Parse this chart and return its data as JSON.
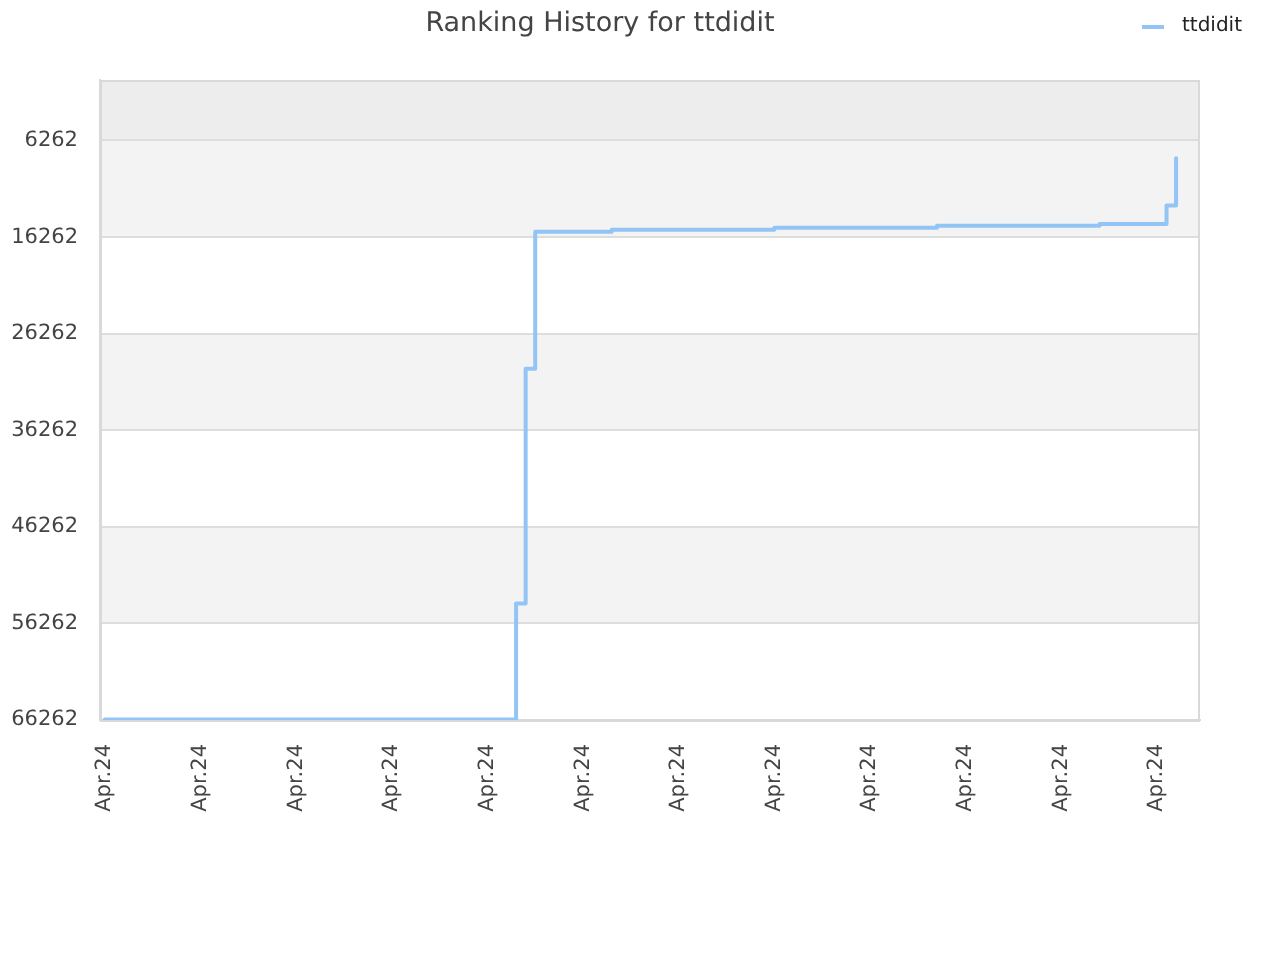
{
  "chart_data": {
    "type": "step",
    "title": "Ranking History for ttdidit",
    "categories": [
      "Apr.24",
      null,
      null,
      null,
      null,
      null,
      null,
      null,
      null,
      null,
      "Apr.24",
      null,
      null,
      null,
      null,
      null,
      null,
      null,
      null,
      null,
      "Apr.24",
      null,
      null,
      null,
      null,
      null,
      null,
      null,
      null,
      null,
      "Apr.24",
      null,
      null,
      null,
      null,
      null,
      null,
      null,
      null,
      null,
      "Apr.24",
      null,
      null,
      null,
      null,
      null,
      null,
      null,
      null,
      null,
      "Apr.24",
      null,
      null,
      null,
      null,
      null,
      null,
      null,
      null,
      null,
      "Apr.24",
      null,
      null,
      null,
      null,
      null,
      null,
      null,
      null,
      null,
      "Apr.24",
      null,
      null,
      null,
      null,
      null,
      null,
      null,
      null,
      null,
      "Apr.24",
      null,
      null,
      null,
      null,
      null,
      null,
      null,
      null,
      null,
      "Apr.24",
      null,
      null,
      null,
      null,
      null,
      null,
      null,
      null,
      null,
      "Apr.24",
      null,
      null,
      null,
      null,
      null,
      null,
      null,
      null,
      null,
      "Apr.24",
      null,
      null,
      null,
      null
    ],
    "series": [
      {
        "name": "ttdidit",
        "color": "#92c5f5",
        "values": [
          66200,
          66200,
          66200,
          66200,
          66200,
          66200,
          66200,
          66200,
          66200,
          66200,
          66200,
          66200,
          66200,
          66200,
          66200,
          66200,
          66200,
          66200,
          66200,
          66200,
          66200,
          66200,
          66200,
          66200,
          66200,
          66200,
          66200,
          66200,
          66200,
          66200,
          66200,
          66200,
          66200,
          66200,
          66200,
          66200,
          66200,
          66200,
          66200,
          66200,
          66200,
          66200,
          66200,
          54200,
          29900,
          15700,
          15700,
          15700,
          15700,
          15700,
          15700,
          15700,
          15700,
          15500,
          15500,
          15500,
          15500,
          15500,
          15500,
          15500,
          15500,
          15500,
          15500,
          15500,
          15500,
          15500,
          15500,
          15500,
          15500,
          15500,
          15300,
          15300,
          15300,
          15300,
          15300,
          15300,
          15300,
          15300,
          15300,
          15300,
          15300,
          15300,
          15300,
          15300,
          15300,
          15300,
          15300,
          15100,
          15100,
          15100,
          15100,
          15100,
          15100,
          15100,
          15100,
          15100,
          15100,
          15100,
          15100,
          15100,
          15100,
          15100,
          15100,
          15100,
          14900,
          14900,
          14900,
          14900,
          14900,
          14900,
          14900,
          13000,
          8100,
          null,
          null
        ]
      }
    ],
    "ylim": [
      66262,
      0
    ],
    "yticks": [
      6262,
      16262,
      26262,
      36262,
      46262,
      56262,
      66262
    ],
    "bands": [
      {
        "axis": "y",
        "from": 0,
        "to": 6262,
        "color": "#ededed"
      },
      {
        "axis": "y",
        "from": 6262,
        "to": 16262,
        "color": "#f3f3f3"
      },
      {
        "axis": "y",
        "from": 26262,
        "to": 36262,
        "color": "#f3f3f3"
      },
      {
        "axis": "y",
        "from": 46262,
        "to": 56262,
        "color": "#f3f3f3"
      }
    ],
    "grid": "y",
    "legend": "top right"
  }
}
